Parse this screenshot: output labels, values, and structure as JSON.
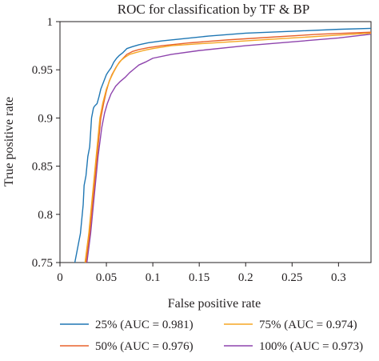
{
  "chart_data": {
    "type": "line",
    "title": "ROC for classification by TF & BP",
    "xlabel": "False positive rate",
    "ylabel": "True positive rate",
    "xlim": [
      0,
      0.335
    ],
    "ylim": [
      0.75,
      1.0
    ],
    "xticks": [
      0,
      0.05,
      0.1,
      0.15,
      0.2,
      0.25,
      0.3
    ],
    "xtick_labels": [
      "0",
      "0.05",
      "0.1",
      "0.15",
      "0.2",
      "0.25",
      "0.3"
    ],
    "yticks": [
      0.75,
      0.8,
      0.85,
      0.9,
      0.95,
      1.0
    ],
    "ytick_labels": [
      "0.75",
      "0.8",
      "0.85",
      "0.9",
      "0.95",
      "1"
    ],
    "grid": false,
    "legend_position": "bottom",
    "series": [
      {
        "name": "25% (AUC = 0.981)",
        "color": "#1f77b4",
        "x": [
          0.016,
          0.018,
          0.02,
          0.022,
          0.024,
          0.025,
          0.026,
          0.028,
          0.03,
          0.032,
          0.034,
          0.036,
          0.037,
          0.04,
          0.042,
          0.044,
          0.046,
          0.048,
          0.05,
          0.052,
          0.055,
          0.058,
          0.061,
          0.064,
          0.068,
          0.072,
          0.078,
          0.085,
          0.095,
          0.11,
          0.13,
          0.16,
          0.2,
          0.25,
          0.3,
          0.335
        ],
        "y": [
          0.75,
          0.76,
          0.77,
          0.78,
          0.8,
          0.81,
          0.83,
          0.84,
          0.86,
          0.87,
          0.9,
          0.91,
          0.912,
          0.915,
          0.922,
          0.93,
          0.935,
          0.94,
          0.945,
          0.948,
          0.952,
          0.958,
          0.962,
          0.965,
          0.968,
          0.972,
          0.974,
          0.976,
          0.978,
          0.98,
          0.982,
          0.985,
          0.988,
          0.99,
          0.992,
          0.993
        ]
      },
      {
        "name": "75% (AUC = 0.974)",
        "color": "#f5a623",
        "x": [
          0.027,
          0.029,
          0.031,
          0.033,
          0.035,
          0.037,
          0.039,
          0.041,
          0.043,
          0.046,
          0.05,
          0.054,
          0.058,
          0.062,
          0.066,
          0.07,
          0.075,
          0.082,
          0.09,
          0.1,
          0.12,
          0.15,
          0.2,
          0.25,
          0.3,
          0.335
        ],
        "y": [
          0.75,
          0.765,
          0.78,
          0.8,
          0.82,
          0.84,
          0.86,
          0.88,
          0.9,
          0.915,
          0.93,
          0.94,
          0.948,
          0.955,
          0.96,
          0.963,
          0.966,
          0.968,
          0.97,
          0.972,
          0.975,
          0.977,
          0.98,
          0.983,
          0.986,
          0.988
        ]
      },
      {
        "name": "50% (AUC = 0.976)",
        "color": "#e8622c",
        "x": [
          0.028,
          0.03,
          0.032,
          0.034,
          0.036,
          0.038,
          0.04,
          0.042,
          0.044,
          0.047,
          0.05,
          0.053,
          0.056,
          0.06,
          0.064,
          0.068,
          0.072,
          0.078,
          0.085,
          0.095,
          0.11,
          0.14,
          0.18,
          0.23,
          0.28,
          0.335
        ],
        "y": [
          0.75,
          0.765,
          0.78,
          0.8,
          0.82,
          0.84,
          0.86,
          0.88,
          0.9,
          0.915,
          0.928,
          0.938,
          0.945,
          0.952,
          0.958,
          0.962,
          0.966,
          0.969,
          0.971,
          0.973,
          0.975,
          0.978,
          0.981,
          0.984,
          0.987,
          0.989
        ]
      },
      {
        "name": "100% (AUC = 0.973)",
        "color": "#8e44ad",
        "x": [
          0.029,
          0.031,
          0.033,
          0.035,
          0.037,
          0.039,
          0.041,
          0.043,
          0.045,
          0.048,
          0.051,
          0.055,
          0.06,
          0.065,
          0.07,
          0.075,
          0.08,
          0.085,
          0.092,
          0.1,
          0.12,
          0.15,
          0.2,
          0.25,
          0.3,
          0.335
        ],
        "y": [
          0.75,
          0.765,
          0.78,
          0.8,
          0.82,
          0.84,
          0.86,
          0.875,
          0.89,
          0.905,
          0.915,
          0.925,
          0.933,
          0.938,
          0.942,
          0.947,
          0.951,
          0.955,
          0.958,
          0.962,
          0.966,
          0.97,
          0.975,
          0.979,
          0.983,
          0.987
        ]
      }
    ],
    "legend_order": [
      0,
      1,
      2,
      3
    ]
  }
}
